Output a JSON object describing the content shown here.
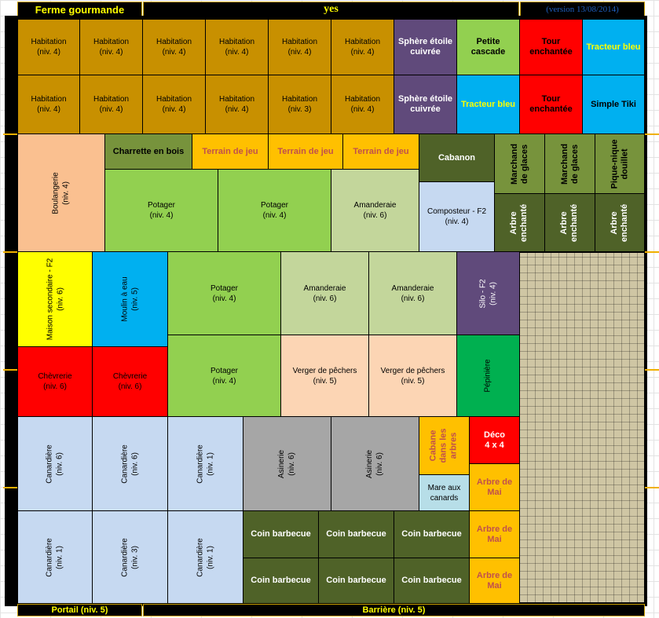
{
  "header": {
    "title": "Ferme gourmande",
    "center": "yes",
    "version": "(version 13/08/2014)"
  },
  "footer": {
    "left": "Portail (niv. 5)",
    "center": "Barrière (niv. 5)"
  },
  "colors": {
    "brown": "#c89000",
    "purple": "#604a7b",
    "green_light": "#92d050",
    "red": "#ff0000",
    "cyan": "#00b0f0",
    "olive": "#77933c",
    "yellow": "#ffc000",
    "dark_green": "#4f6228",
    "peach": "#fac090",
    "light_blue": "#c6d9f1",
    "pale_green": "#c3d69b",
    "bright_yellow": "#ffff00",
    "pale_peach": "#fcd5b4",
    "green": "#00b050",
    "gray": "#a6a6a6",
    "pale_cyan": "#b7dee8"
  },
  "cells": [
    {
      "text": "Habitation\n(niv. 4)"
    },
    {
      "text": "Habitation\n(niv. 4)"
    },
    {
      "text": "Habitation\n(niv. 4)"
    },
    {
      "text": "Habitation\n(niv. 4)"
    },
    {
      "text": "Habitation\n(niv. 4)"
    },
    {
      "text": "Habitation\n(niv. 4)"
    },
    {
      "text": "Sphère étoile\ncuivrée"
    },
    {
      "text": "Petite\ncascade"
    },
    {
      "text": "Tour\nenchantée"
    },
    {
      "text": "Tracteur bleu"
    },
    {
      "text": "Habitation\n(niv. 4)"
    },
    {
      "text": "Habitation\n(niv. 4)"
    },
    {
      "text": "Habitation\n(niv. 4)"
    },
    {
      "text": "Habitation\n(niv. 4)"
    },
    {
      "text": "Habitation\n(niv. 3)"
    },
    {
      "text": "Habitation\n(niv. 4)"
    },
    {
      "text": "Sphère étoile\ncuivrée"
    },
    {
      "text": "Tracteur bleu"
    },
    {
      "text": "Tour\nenchantée"
    },
    {
      "text": "Simple Tiki"
    },
    {
      "text": "Boulangerie\n(niv. 4)"
    },
    {
      "text": "Charrette en bois"
    },
    {
      "text": "Terrain de jeu"
    },
    {
      "text": "Terrain de jeu"
    },
    {
      "text": "Terrain de jeu"
    },
    {
      "text": "Cabanon"
    },
    {
      "text": "Marchand\nde glaces"
    },
    {
      "text": "Marchand\nde glaces"
    },
    {
      "text": "Pique-nique\ndouillet"
    },
    {
      "text": "Potager\n(niv. 4)"
    },
    {
      "text": "Potager\n(niv. 4)"
    },
    {
      "text": "Amanderaie\n(niv. 6)"
    },
    {
      "text": "Composteur - F2\n(niv. 4)"
    },
    {
      "text": "Arbre\nenchanté"
    },
    {
      "text": "Arbre\nenchanté"
    },
    {
      "text": "Arbre\nenchanté"
    },
    {
      "text": "Maison secondaire - F2\n(niv. 6)"
    },
    {
      "text": "Moulin à eau\n(niv. 5)"
    },
    {
      "text": "Potager\n(niv. 4)"
    },
    {
      "text": "Amanderaie\n(niv. 6)"
    },
    {
      "text": "Amanderaie\n(niv. 6)"
    },
    {
      "text": "Silo - F2\n(niv. 4)"
    },
    {
      "text": "Chèvrerie\n(niv. 6)"
    },
    {
      "text": "Chèvrerie\n(niv. 6)"
    },
    {
      "text": "Potager\n(niv. 4)"
    },
    {
      "text": "Verger de pêchers\n(niv. 5)"
    },
    {
      "text": "Verger de pêchers\n(niv. 5)"
    },
    {
      "text": "Pépinière"
    },
    {
      "text": "Canardière\n(niv. 6)"
    },
    {
      "text": "Canardière\n(niv. 6)"
    },
    {
      "text": "Canardière\n(niv. 1)"
    },
    {
      "text": "Asinerie\n(niv. 6)"
    },
    {
      "text": "Asinerie\n(niv. 6)"
    },
    {
      "text": "Cabane\ndans les\narbres"
    },
    {
      "text": "Déco\n4 x 4"
    },
    {
      "text": "Mare aux\ncanards"
    },
    {
      "text": "Arbre de\nMai"
    },
    {
      "text": "Canardière\n(niv. 1)"
    },
    {
      "text": "Canardière\n(niv. 3)"
    },
    {
      "text": "Canardière\n(niv. 1)"
    },
    {
      "text": "Coin barbecue"
    },
    {
      "text": "Coin barbecue"
    },
    {
      "text": "Coin barbecue"
    },
    {
      "text": "Arbre de\nMai"
    },
    {
      "text": "Coin barbecue"
    },
    {
      "text": "Coin barbecue"
    },
    {
      "text": "Coin barbecue"
    },
    {
      "text": "Arbre de\nMai"
    }
  ]
}
